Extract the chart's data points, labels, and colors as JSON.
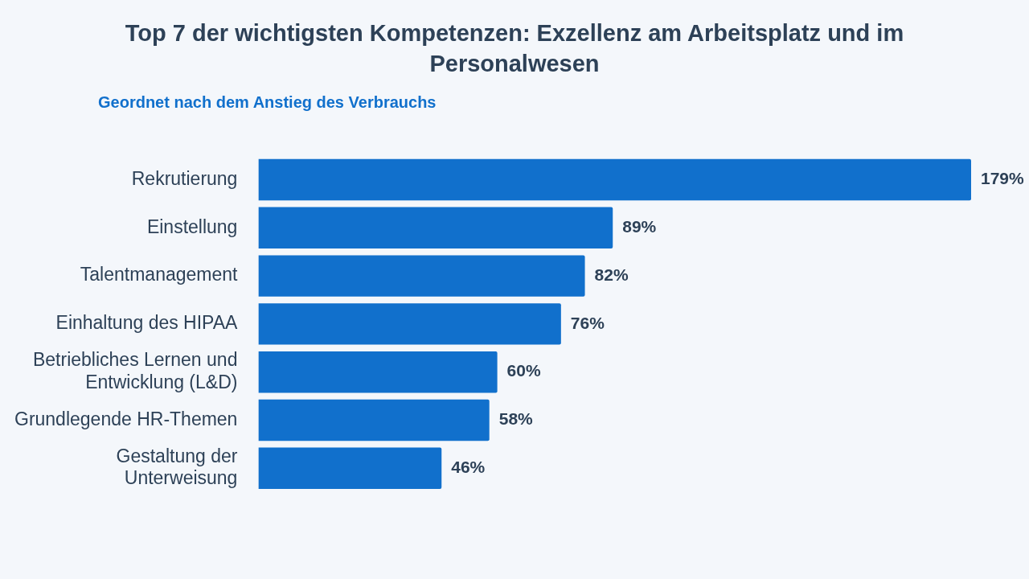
{
  "chart_data": {
    "type": "bar",
    "orientation": "horizontal",
    "title": "Top 7 der wichtigsten Kompetenzen: Exzellenz am Arbeitsplatz und im Personalwesen",
    "subtitle": "Geordnet nach dem Anstieg des Verbrauchs",
    "categories": [
      "Rekrutierung",
      "Einstellung",
      "Talentmanagement",
      "Einhaltung des HIPAA",
      "Betriebliches Lernen und Entwicklung (L&D)",
      "Grundlegende HR-Themen",
      "Gestaltung der Unterweisung"
    ],
    "values": [
      179,
      89,
      82,
      76,
      60,
      58,
      46
    ],
    "value_labels": [
      "179%",
      "89%",
      "82%",
      "76%",
      "60%",
      "58%",
      "46%"
    ],
    "color": "#1170cc",
    "grid": false,
    "legend": false
  }
}
